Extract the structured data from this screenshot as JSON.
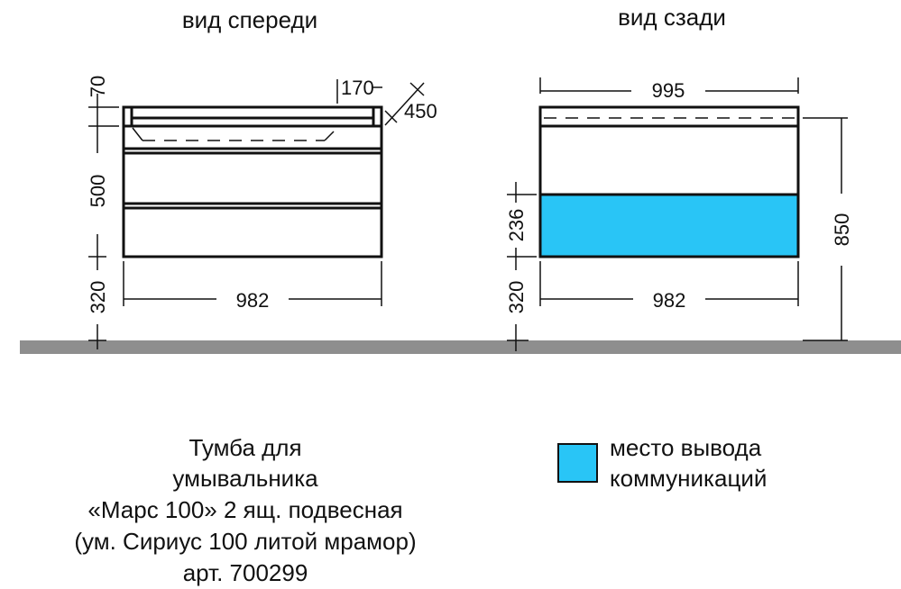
{
  "views": {
    "front": {
      "title": "вид спереди",
      "dims": {
        "top_height": "70",
        "depth_offset": "170",
        "depth": "450",
        "body_height": "500",
        "floor_gap": "320",
        "width": "982"
      }
    },
    "rear": {
      "title": "вид сзади",
      "dims": {
        "top_width": "995",
        "outlet_height": "236",
        "floor_gap": "320",
        "width": "982",
        "total_height": "850"
      }
    }
  },
  "colors": {
    "outlet_zone": "#29c5f6",
    "floor": "#8e8e8e",
    "line": "#111111"
  },
  "product": {
    "lines": [
      "Тумба для",
      "умывальника",
      "«Марс 100» 2 ящ. подвесная",
      "(ум. Сириус 100 литой мрамор)",
      "арт. 700299"
    ]
  },
  "legend": {
    "lines": [
      "место вывода",
      "коммуникаций"
    ]
  }
}
